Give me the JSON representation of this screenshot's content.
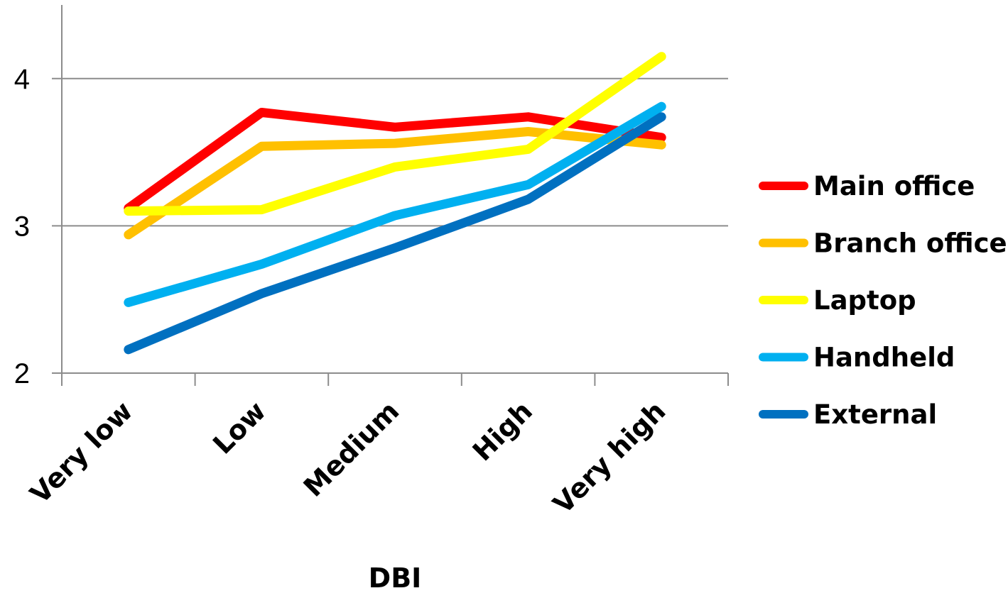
{
  "chart_data": {
    "type": "line",
    "title": "",
    "xlabel": "DBI",
    "ylabel": "",
    "categories": [
      "Very low",
      "Low",
      "Medium",
      "High",
      "Very high"
    ],
    "ylim": [
      2,
      4.5
    ],
    "yticks": [
      2,
      3,
      4
    ],
    "ytick_labels": [
      "2",
      "3",
      "4"
    ],
    "grid": true,
    "legend_position": "right",
    "series": [
      {
        "name": "Main office",
        "color": "#ff0000",
        "values": [
          3.12,
          3.77,
          3.67,
          3.74,
          3.6
        ]
      },
      {
        "name": "Branch office",
        "color": "#ffc000",
        "values": [
          2.94,
          3.54,
          3.56,
          3.64,
          3.55
        ]
      },
      {
        "name": "Laptop",
        "color": "#ffff00",
        "values": [
          3.1,
          3.11,
          3.4,
          3.52,
          4.15
        ]
      },
      {
        "name": "Handheld",
        "color": "#00b0f0",
        "values": [
          2.48,
          2.74,
          3.07,
          3.28,
          3.81
        ]
      },
      {
        "name": "External",
        "color": "#0070c0",
        "values": [
          2.16,
          2.54,
          2.85,
          3.18,
          3.74
        ]
      }
    ]
  }
}
